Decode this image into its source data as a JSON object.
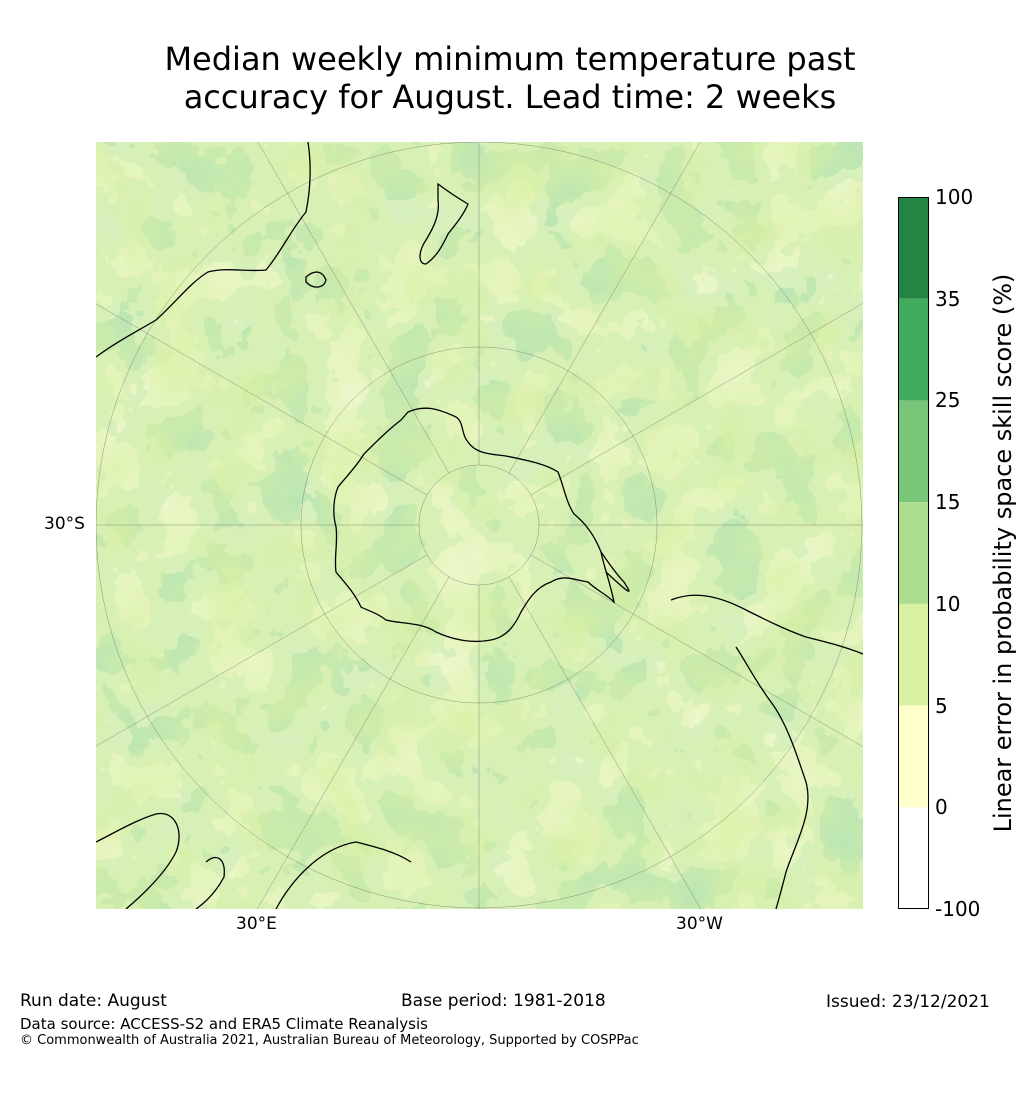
{
  "title_line1": "Median weekly minimum temperature past",
  "title_line2": "accuracy for August. Lead time: 2 weeks",
  "map": {
    "projection": "south-polar-stereographic",
    "lat_label_left": "30°S",
    "lon_label_left": "30°E",
    "lon_label_right": "30°W",
    "land_mask": "ocean and land shaded by skill; coastlines in black",
    "colors": {
      "white": "#ffffff",
      "pale_yellow": "#ffffcc",
      "light_green": "#d9f0a3",
      "mid_light_green": "#addd8e",
      "mid_green": "#78c679",
      "green": "#41ab5d",
      "dark_green": "#238443"
    }
  },
  "colorbar": {
    "label": "Linear error in probability space skill score (%)",
    "ticks": [
      "100",
      "35",
      "25",
      "15",
      "10",
      "5",
      "0",
      "-100"
    ],
    "colors_top_to_bottom": [
      "#238443",
      "#41ab5d",
      "#78c679",
      "#addd8e",
      "#d9f0a3",
      "#ffffcc",
      "#ffffff"
    ]
  },
  "footer": {
    "run_date": "Run date: August",
    "base_period": "Base period: 1981-2018",
    "issued": "Issued: 23/12/2021",
    "data_source": "Data source: ACCESS-S2 and ERA5 Climate Reanalysis",
    "copyright": "© Commonwealth of Australia 2021, Australian Bureau of Meteorology, Supported by COSPPac"
  }
}
